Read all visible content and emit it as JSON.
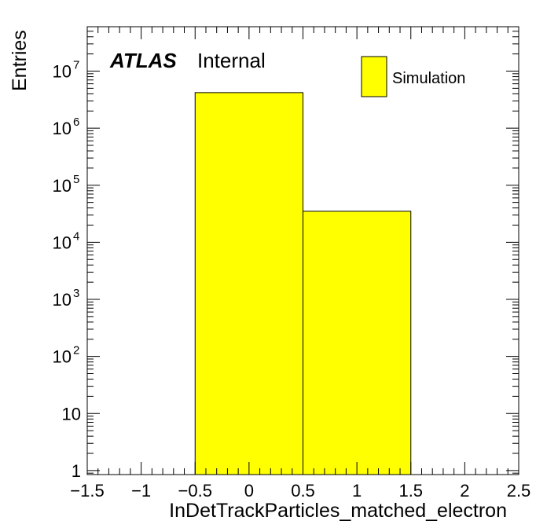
{
  "chart_data": {
    "type": "bar",
    "histogram": true,
    "x_bins": [
      [
        -0.5,
        0.5
      ],
      [
        0.5,
        1.5
      ]
    ],
    "values": [
      4200000,
      35000
    ],
    "xlabel": "InDetTrackParticles_matched_electron",
    "ylabel": "Entries",
    "xlim": [
      -1.5,
      2.5
    ],
    "ylim": [
      0.85,
      60000000
    ],
    "y_scale": "log",
    "grid": false,
    "bar_color": "#ffff00",
    "x_ticks": [
      -1.5,
      -1,
      -0.5,
      0,
      0.5,
      1,
      1.5,
      2,
      2.5
    ],
    "x_tick_labels": [
      "−1.5",
      "−1",
      "−0.5",
      "0",
      "0.5",
      "1",
      "1.5",
      "2",
      "2.5"
    ],
    "y_ticks": [
      {
        "value": 1,
        "base": "1",
        "exp": ""
      },
      {
        "value": 10,
        "base": "10",
        "exp": ""
      },
      {
        "value": 100,
        "base": "10",
        "exp": "2"
      },
      {
        "value": 1000,
        "base": "10",
        "exp": "3"
      },
      {
        "value": 10000,
        "base": "10",
        "exp": "4"
      },
      {
        "value": 100000,
        "base": "10",
        "exp": "5"
      },
      {
        "value": 1000000,
        "base": "10",
        "exp": "6"
      },
      {
        "value": 10000000,
        "base": "10",
        "exp": "7"
      }
    ],
    "legend": {
      "entries": [
        {
          "label": "Simulation",
          "color": "#ffff00"
        }
      ],
      "placement": "top-right"
    },
    "annotations": {
      "experiment": "ATLAS",
      "status": "Internal"
    }
  }
}
